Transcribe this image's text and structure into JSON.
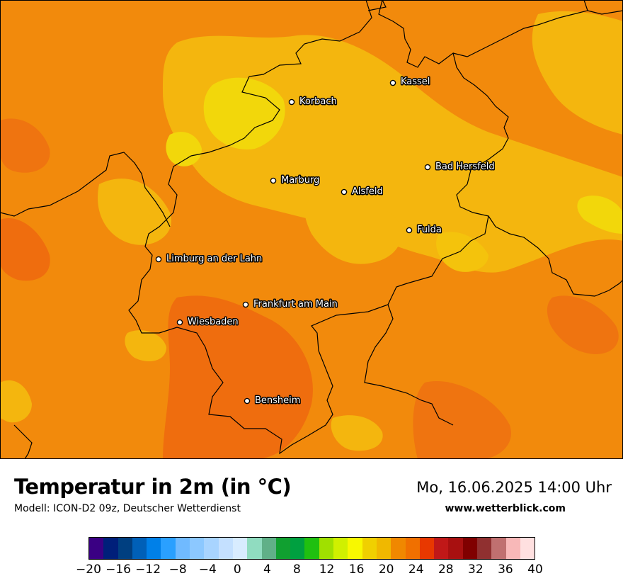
{
  "title": "Temperatur in 2m (in °C)",
  "model": "Modell: ICON-D2 09z, Deutscher Wetterdienst",
  "datetime": "Mo, 16.06.2025 14:00 Uhr",
  "website": "www.wetterblick.com",
  "cities": [
    {
      "id": "kassel",
      "name": "Kassel"
    },
    {
      "id": "korbach",
      "name": "Korbach"
    },
    {
      "id": "bad-hersfeld",
      "name": "Bad Hersfeld"
    },
    {
      "id": "marburg",
      "name": "Marburg"
    },
    {
      "id": "alsfeld",
      "name": "Alsfeld"
    },
    {
      "id": "fulda",
      "name": "Fulda"
    },
    {
      "id": "limburg",
      "name": "Limburg an der Lahn"
    },
    {
      "id": "frankfurt",
      "name": "Frankfurt am Main"
    },
    {
      "id": "wiesbaden",
      "name": "Wiesbaden"
    },
    {
      "id": "bensheim",
      "name": "Bensheim"
    }
  ],
  "colorbar": {
    "colors": [
      "#3a0083",
      "#001f7a",
      "#003f80",
      "#0060b8",
      "#0080e8",
      "#2aa0ff",
      "#70baff",
      "#8cc8ff",
      "#a8d4ff",
      "#c4e0ff",
      "#d8ecff",
      "#90dcc0",
      "#60b088",
      "#10a030",
      "#00a040",
      "#20c010",
      "#a0e000",
      "#d0f000",
      "#f8f800",
      "#f0d000",
      "#f0b800",
      "#f08800",
      "#f07000",
      "#e83800",
      "#c01818",
      "#a81010",
      "#800000",
      "#903030",
      "#c07070",
      "#f8b8b8",
      "#ffe0e0"
    ],
    "ticks": [
      "−20",
      "−16",
      "−12",
      "−8",
      "−4",
      "0",
      "4",
      "8",
      "12",
      "16",
      "20",
      "24",
      "28",
      "32",
      "36",
      "40"
    ]
  }
}
